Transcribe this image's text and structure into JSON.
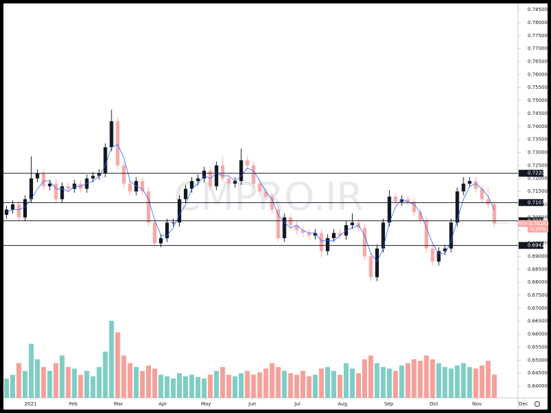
{
  "chart_data": {
    "type": "candlestick",
    "symbol": "NZDUSD",
    "watermark": "CMPRO.IR",
    "up_color": "#131722",
    "down_color": "#f7a9a7",
    "ma_color": "#2962ff",
    "vol_up_color": "#7fcdc4",
    "vol_down_color": "#f4a09b",
    "ylim": [
      0.6355,
      0.7866
    ],
    "xlim": [
      -0.5,
      82.6
    ],
    "vlim": [
      0,
      100
    ],
    "yticks": [
      {
        "value": 0.64,
        "label": "0.64000"
      },
      {
        "value": 0.645,
        "label": "0.64500"
      },
      {
        "value": 0.65,
        "label": "0.65000"
      },
      {
        "value": 0.655,
        "label": "0.65500"
      },
      {
        "value": 0.66,
        "label": "0.66000"
      },
      {
        "value": 0.665,
        "label": "0.66500"
      },
      {
        "value": 0.67,
        "label": "0.67000"
      },
      {
        "value": 0.675,
        "label": "0.67500"
      },
      {
        "value": 0.68,
        "label": "0.68000"
      },
      {
        "value": 0.685,
        "label": "0.68500"
      },
      {
        "value": 0.69,
        "label": "0.69000"
      },
      {
        "value": 0.695,
        "label": "0.69500"
      },
      {
        "value": 0.7,
        "label": "0.70000"
      },
      {
        "value": 0.705,
        "label": "0.70500"
      },
      {
        "value": 0.71,
        "label": "0.71000"
      },
      {
        "value": 0.715,
        "label": "0.71500"
      },
      {
        "value": 0.72,
        "label": "0.72000"
      },
      {
        "value": 0.725,
        "label": "0.72500"
      },
      {
        "value": 0.73,
        "label": "0.73000"
      },
      {
        "value": 0.735,
        "label": "0.73500"
      },
      {
        "value": 0.74,
        "label": "0.74000"
      },
      {
        "value": 0.745,
        "label": "0.74500"
      },
      {
        "value": 0.75,
        "label": "0.75000"
      },
      {
        "value": 0.755,
        "label": "0.75500"
      },
      {
        "value": 0.76,
        "label": "0.76000"
      },
      {
        "value": 0.765,
        "label": "0.76500"
      },
      {
        "value": 0.77,
        "label": "0.77000"
      },
      {
        "value": 0.775,
        "label": "0.77500"
      },
      {
        "value": 0.78,
        "label": "0.78000"
      },
      {
        "value": 0.785,
        "label": "0.78500"
      }
    ],
    "xticks": [
      {
        "value": 3.9,
        "label": "2021"
      },
      {
        "value": 10.8,
        "label": "Feb"
      },
      {
        "value": 18.1,
        "label": "Mar"
      },
      {
        "value": 25.3,
        "label": "Apr"
      },
      {
        "value": 32.3,
        "label": "May"
      },
      {
        "value": 39.8,
        "label": "Jun"
      },
      {
        "value": 47.1,
        "label": "Jul"
      },
      {
        "value": 54.4,
        "label": "Aug"
      },
      {
        "value": 61.9,
        "label": "Sep"
      },
      {
        "value": 69.2,
        "label": "Oct"
      },
      {
        "value": 76.2,
        "label": "Nov"
      },
      {
        "value": 83.7,
        "label": "Dec"
      }
    ],
    "levels": [
      {
        "value": 0.722,
        "label": "0.72200"
      },
      {
        "value": 0.7107,
        "label": "0.71070"
      },
      {
        "value": 0.7037,
        "label": "0.70370"
      },
      {
        "value": 0.6942,
        "label": "0.69420"
      }
    ],
    "last_value": {
      "value": 0.70263,
      "label": "0.70263"
    },
    "change": {
      "value": -5.25,
      "label": "-5.25%"
    },
    "open": [
      0.706,
      0.708,
      0.71,
      0.705,
      0.712,
      0.72,
      0.722,
      0.717,
      0.718,
      0.712,
      0.717,
      0.716,
      0.718,
      0.716,
      0.72,
      0.721,
      0.722,
      0.732,
      0.742,
      0.725,
      0.718,
      0.715,
      0.719,
      0.715,
      0.703,
      0.695,
      0.697,
      0.703,
      0.703,
      0.712,
      0.716,
      0.719,
      0.72,
      0.723,
      0.717,
      0.725,
      0.72,
      0.718,
      0.719,
      0.727,
      0.725,
      0.718,
      0.715,
      0.713,
      0.708,
      0.697,
      0.705,
      0.702,
      0.7,
      0.699,
      0.698,
      0.699,
      0.692,
      0.697,
      0.699,
      0.698,
      0.702,
      0.703,
      0.701,
      0.69,
      0.682,
      0.693,
      0.703,
      0.713,
      0.711,
      0.712,
      0.711,
      0.707,
      0.704,
      0.693,
      0.688,
      0.692,
      0.693,
      0.703,
      0.715,
      0.718,
      0.719,
      0.716,
      0.712,
      0.71
    ],
    "high": [
      0.7095,
      0.7115,
      0.7115,
      0.7135,
      0.7285,
      0.7235,
      0.7235,
      0.7195,
      0.7195,
      0.7185,
      0.7185,
      0.7195,
      0.7195,
      0.7215,
      0.7225,
      0.7235,
      0.7335,
      0.7465,
      0.7435,
      0.7265,
      0.7195,
      0.7205,
      0.7205,
      0.7165,
      0.7045,
      0.6985,
      0.7045,
      0.7045,
      0.7135,
      0.7175,
      0.7205,
      0.7215,
      0.7245,
      0.7245,
      0.7265,
      0.7285,
      0.7215,
      0.7205,
      0.7315,
      0.7285,
      0.7265,
      0.7195,
      0.7165,
      0.7145,
      0.7095,
      0.7065,
      0.7065,
      0.7035,
      0.7015,
      0.7005,
      0.7005,
      0.7005,
      0.6985,
      0.7005,
      0.7005,
      0.7035,
      0.7065,
      0.7045,
      0.7025,
      0.6915,
      0.6945,
      0.7045,
      0.7155,
      0.7145,
      0.7135,
      0.7135,
      0.7125,
      0.7085,
      0.7055,
      0.6945,
      0.6935,
      0.6945,
      0.7045,
      0.7165,
      0.7205,
      0.7205,
      0.7205,
      0.7175,
      0.7165,
      0.7115
    ],
    "low": [
      0.7045,
      0.7065,
      0.7035,
      0.7035,
      0.7105,
      0.7185,
      0.7155,
      0.7155,
      0.7105,
      0.7105,
      0.7145,
      0.7145,
      0.7145,
      0.7145,
      0.7185,
      0.7195,
      0.7205,
      0.7305,
      0.7235,
      0.7165,
      0.7135,
      0.7135,
      0.7135,
      0.7015,
      0.6935,
      0.6935,
      0.6955,
      0.7015,
      0.7015,
      0.7105,
      0.7145,
      0.7175,
      0.7185,
      0.7155,
      0.7155,
      0.7185,
      0.7165,
      0.7165,
      0.7175,
      0.7235,
      0.7165,
      0.7135,
      0.7115,
      0.7065,
      0.6955,
      0.6955,
      0.7005,
      0.6985,
      0.6975,
      0.6965,
      0.6965,
      0.6895,
      0.6905,
      0.6955,
      0.6965,
      0.6965,
      0.7005,
      0.6995,
      0.6885,
      0.6805,
      0.6805,
      0.6915,
      0.7015,
      0.7095,
      0.7095,
      0.7095,
      0.7055,
      0.7025,
      0.6915,
      0.6865,
      0.6865,
      0.6905,
      0.6915,
      0.7015,
      0.7135,
      0.7165,
      0.7145,
      0.7105,
      0.7085,
      0.7011
    ],
    "close": [
      0.708,
      0.71,
      0.705,
      0.712,
      0.72,
      0.722,
      0.717,
      0.718,
      0.712,
      0.717,
      0.716,
      0.718,
      0.716,
      0.72,
      0.721,
      0.722,
      0.732,
      0.742,
      0.725,
      0.718,
      0.715,
      0.719,
      0.715,
      0.703,
      0.695,
      0.697,
      0.703,
      0.703,
      0.712,
      0.716,
      0.719,
      0.72,
      0.723,
      0.717,
      0.725,
      0.72,
      0.718,
      0.719,
      0.727,
      0.725,
      0.718,
      0.715,
      0.713,
      0.708,
      0.697,
      0.705,
      0.702,
      0.7,
      0.699,
      0.698,
      0.699,
      0.692,
      0.697,
      0.699,
      0.698,
      0.702,
      0.703,
      0.701,
      0.69,
      0.682,
      0.693,
      0.703,
      0.713,
      0.711,
      0.712,
      0.711,
      0.707,
      0.704,
      0.693,
      0.688,
      0.692,
      0.693,
      0.703,
      0.715,
      0.718,
      0.719,
      0.716,
      0.712,
      0.71,
      0.7026
    ],
    "ma": [
      0.707,
      0.708,
      0.708,
      0.709,
      0.712,
      0.716,
      0.719,
      0.719,
      0.716,
      0.716,
      0.715,
      0.717,
      0.717,
      0.718,
      0.719,
      0.721,
      0.725,
      0.732,
      0.733,
      0.728,
      0.719,
      0.717,
      0.716,
      0.712,
      0.704,
      0.698,
      0.698,
      0.701,
      0.706,
      0.71,
      0.716,
      0.718,
      0.721,
      0.72,
      0.722,
      0.721,
      0.721,
      0.719,
      0.721,
      0.724,
      0.723,
      0.719,
      0.715,
      0.712,
      0.706,
      0.703,
      0.701,
      0.702,
      0.7,
      0.699,
      0.699,
      0.696,
      0.696,
      0.696,
      0.698,
      0.7,
      0.701,
      0.702,
      0.698,
      0.691,
      0.688,
      0.693,
      0.703,
      0.709,
      0.712,
      0.711,
      0.71,
      0.707,
      0.701,
      0.695,
      0.691,
      0.691,
      0.696,
      0.704,
      0.712,
      0.717,
      0.718,
      0.716,
      0.713,
      0.708
    ],
    "volume": [
      25,
      30,
      45,
      35,
      70,
      50,
      40,
      35,
      45,
      55,
      40,
      38,
      30,
      35,
      28,
      40,
      60,
      100,
      85,
      55,
      45,
      40,
      35,
      42,
      38,
      30,
      28,
      25,
      32,
      28,
      30,
      27,
      25,
      30,
      35,
      40,
      30,
      28,
      32,
      35,
      30,
      33,
      38,
      45,
      40,
      35,
      32,
      30,
      35,
      28,
      30,
      38,
      40,
      35,
      30,
      45,
      38,
      32,
      50,
      55,
      45,
      40,
      38,
      35,
      42,
      45,
      50,
      48,
      55,
      50,
      45,
      40,
      38,
      42,
      45,
      40,
      38,
      42,
      48,
      30
    ]
  }
}
